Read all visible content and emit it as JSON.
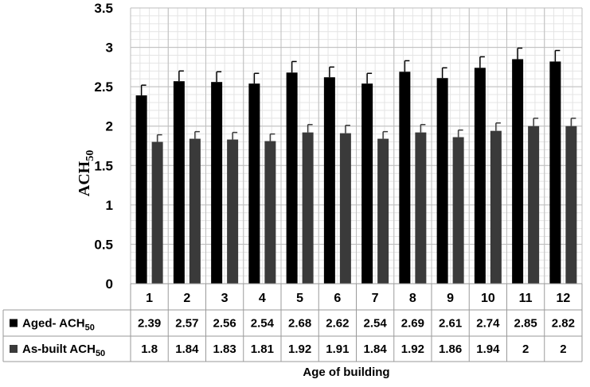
{
  "chart_data": {
    "type": "bar",
    "title": "",
    "xlabel": "Age of building",
    "ylabel": "ACH50",
    "ylabel_main": "ACH",
    "ylabel_sub": "50",
    "ylim": [
      0,
      3.5
    ],
    "yticks": [
      "0",
      "0.5",
      "1",
      "1.5",
      "2",
      "2.5",
      "3",
      "3.5"
    ],
    "categories": [
      "1",
      "2",
      "3",
      "4",
      "5",
      "6",
      "7",
      "8",
      "9",
      "10",
      "11",
      "12"
    ],
    "grid": true,
    "legend_placement": "data-table-left",
    "series": [
      {
        "name": "Aged- ACH50",
        "name_main": "Aged- ACH",
        "name_sub": "50",
        "color": "#000000",
        "values": [
          2.39,
          2.57,
          2.56,
          2.54,
          2.68,
          2.62,
          2.54,
          2.69,
          2.61,
          2.74,
          2.85,
          2.82
        ],
        "labels": [
          "2.39",
          "2.57",
          "2.56",
          "2.54",
          "2.68",
          "2.62",
          "2.54",
          "2.69",
          "2.61",
          "2.74",
          "2.85",
          "2.82"
        ],
        "error": [
          0.13,
          0.13,
          0.13,
          0.13,
          0.14,
          0.13,
          0.13,
          0.14,
          0.13,
          0.14,
          0.14,
          0.14
        ]
      },
      {
        "name": "As-built ACH50",
        "name_main": "As-built ACH",
        "name_sub": "50",
        "color": "#3a3a3a",
        "values": [
          1.8,
          1.84,
          1.83,
          1.81,
          1.92,
          1.91,
          1.84,
          1.92,
          1.86,
          1.94,
          2,
          2
        ],
        "labels": [
          "1.8",
          "1.84",
          "1.83",
          "1.81",
          "1.92",
          "1.91",
          "1.84",
          "1.92",
          "1.86",
          "1.94",
          "2",
          "2"
        ],
        "error": [
          0.09,
          0.09,
          0.09,
          0.09,
          0.1,
          0.1,
          0.09,
          0.1,
          0.09,
          0.1,
          0.1,
          0.1
        ]
      }
    ]
  }
}
